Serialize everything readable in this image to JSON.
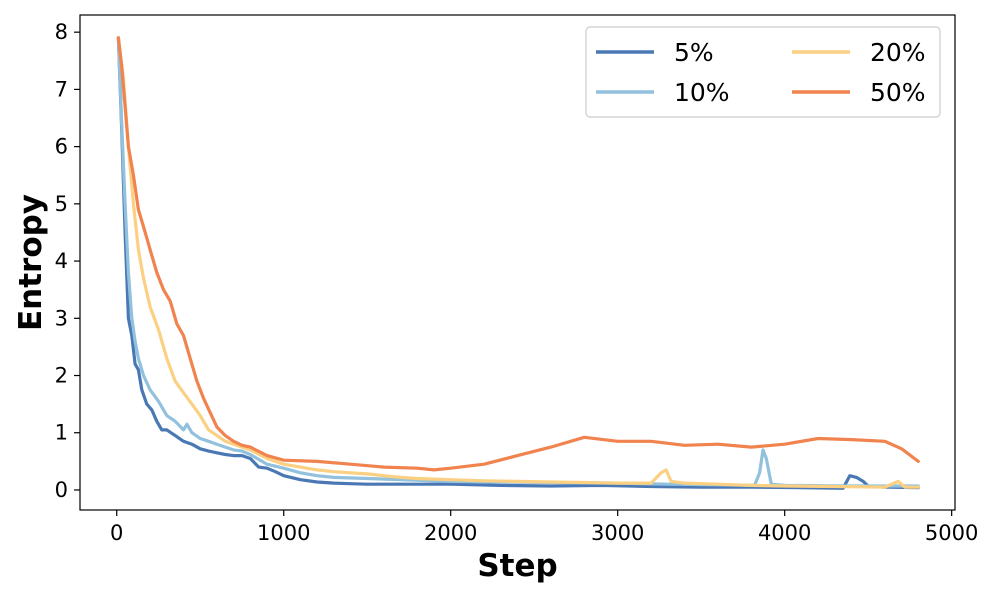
{
  "chart_data": {
    "type": "line",
    "xlabel": "Step",
    "ylabel": "Entropy",
    "xlim": [
      -220,
      5020
    ],
    "ylim": [
      -0.35,
      8.3
    ],
    "xticks": [
      0,
      1000,
      2000,
      3000,
      4000,
      5000
    ],
    "yticks": [
      0,
      1,
      2,
      3,
      4,
      5,
      6,
      7,
      8
    ],
    "legend": {
      "placement": "top-right",
      "columns": 2
    },
    "grid": false,
    "series": [
      {
        "name": "5%",
        "color": "#4a78b4",
        "x": [
          10,
          30,
          50,
          70,
          90,
          110,
          130,
          150,
          180,
          210,
          240,
          270,
          300,
          350,
          400,
          450,
          500,
          550,
          600,
          650,
          700,
          750,
          800,
          850,
          900,
          950,
          1000,
          1100,
          1200,
          1300,
          1400,
          1500,
          1700,
          2000,
          2300,
          2600,
          2900,
          3200,
          3500,
          3800,
          4100,
          4350,
          4390,
          4430,
          4470,
          4500,
          4600,
          4800
        ],
        "y": [
          7.9,
          6.3,
          4.5,
          3.0,
          2.7,
          2.2,
          2.1,
          1.75,
          1.5,
          1.4,
          1.2,
          1.05,
          1.05,
          0.95,
          0.85,
          0.8,
          0.72,
          0.68,
          0.65,
          0.62,
          0.6,
          0.6,
          0.55,
          0.4,
          0.38,
          0.32,
          0.25,
          0.18,
          0.14,
          0.12,
          0.11,
          0.1,
          0.1,
          0.1,
          0.08,
          0.07,
          0.08,
          0.06,
          0.05,
          0.05,
          0.04,
          0.03,
          0.25,
          0.22,
          0.15,
          0.07,
          0.05,
          0.04
        ]
      },
      {
        "name": "10%",
        "color": "#92c1de",
        "x": [
          10,
          30,
          50,
          70,
          90,
          110,
          130,
          160,
          200,
          250,
          300,
          350,
          400,
          420,
          450,
          500,
          550,
          600,
          650,
          700,
          750,
          800,
          900,
          1000,
          1100,
          1200,
          1300,
          1500,
          1700,
          2000,
          2300,
          2600,
          3000,
          3300,
          3600,
          3820,
          3850,
          3870,
          3890,
          3920,
          4000,
          4400,
          4800
        ],
        "y": [
          7.9,
          6.4,
          5.0,
          3.8,
          3.0,
          2.6,
          2.3,
          2.0,
          1.75,
          1.55,
          1.3,
          1.2,
          1.05,
          1.15,
          1.0,
          0.9,
          0.85,
          0.8,
          0.75,
          0.7,
          0.68,
          0.62,
          0.45,
          0.38,
          0.3,
          0.25,
          0.22,
          0.2,
          0.18,
          0.15,
          0.14,
          0.13,
          0.12,
          0.1,
          0.09,
          0.08,
          0.3,
          0.7,
          0.55,
          0.1,
          0.08,
          0.07,
          0.07
        ]
      },
      {
        "name": "20%",
        "color": "#fbd082",
        "x": [
          10,
          40,
          70,
          100,
          130,
          160,
          200,
          250,
          300,
          350,
          400,
          450,
          500,
          550,
          600,
          650,
          700,
          750,
          800,
          900,
          1000,
          1100,
          1200,
          1300,
          1400,
          1500,
          1600,
          1700,
          1800,
          2000,
          2200,
          2400,
          2600,
          2800,
          3000,
          3200,
          3260,
          3290,
          3320,
          3400,
          3600,
          3800,
          4000,
          4300,
          4600,
          4680,
          4720,
          4800
        ],
        "y": [
          7.9,
          7.2,
          6.0,
          5.0,
          4.2,
          3.7,
          3.2,
          2.8,
          2.3,
          1.9,
          1.7,
          1.5,
          1.3,
          1.05,
          0.95,
          0.85,
          0.8,
          0.75,
          0.7,
          0.55,
          0.45,
          0.4,
          0.35,
          0.32,
          0.3,
          0.28,
          0.25,
          0.22,
          0.2,
          0.18,
          0.16,
          0.15,
          0.14,
          0.13,
          0.12,
          0.12,
          0.3,
          0.35,
          0.15,
          0.12,
          0.1,
          0.08,
          0.07,
          0.06,
          0.05,
          0.15,
          0.05,
          0.05
        ]
      },
      {
        "name": "50%",
        "color": "#f0834e",
        "x": [
          10,
          30,
          50,
          70,
          100,
          130,
          160,
          200,
          240,
          280,
          320,
          360,
          400,
          440,
          480,
          520,
          560,
          600,
          650,
          700,
          750,
          800,
          900,
          1000,
          1200,
          1400,
          1600,
          1800,
          1900,
          2000,
          2200,
          2400,
          2600,
          2800,
          3000,
          3200,
          3400,
          3600,
          3800,
          4000,
          4200,
          4400,
          4600,
          4700,
          4800
        ],
        "y": [
          7.9,
          7.4,
          6.7,
          6.0,
          5.5,
          4.9,
          4.6,
          4.2,
          3.8,
          3.5,
          3.3,
          2.9,
          2.7,
          2.3,
          1.9,
          1.6,
          1.35,
          1.1,
          0.95,
          0.85,
          0.78,
          0.75,
          0.6,
          0.52,
          0.5,
          0.45,
          0.4,
          0.38,
          0.35,
          0.38,
          0.45,
          0.6,
          0.75,
          0.92,
          0.85,
          0.85,
          0.78,
          0.8,
          0.75,
          0.8,
          0.9,
          0.88,
          0.85,
          0.72,
          0.5
        ]
      }
    ]
  }
}
